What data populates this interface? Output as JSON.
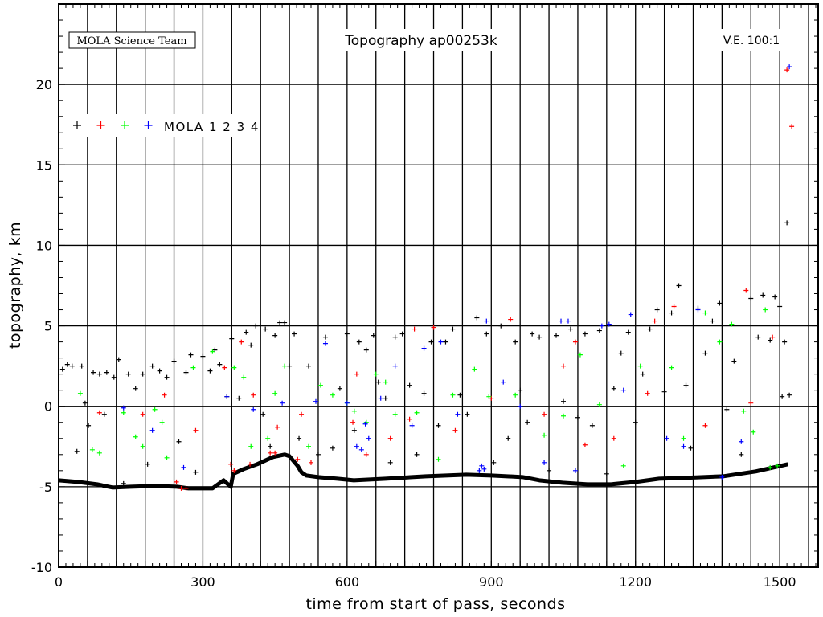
{
  "header": {
    "credit": "MOLA Science Team",
    "title": "Topography ap00253k",
    "ve": "V.E. 100:1"
  },
  "legend": {
    "label": "MOLA 1 2 3 4"
  },
  "chart_data": {
    "type": "scatter",
    "title": "Topography ap00253k",
    "xlabel": "time from start of pass, seconds",
    "ylabel": "topography, km",
    "xlim": [
      0,
      1580
    ],
    "ylim": [
      -10,
      25
    ],
    "xticks": [
      0,
      300,
      600,
      900,
      1200,
      1500
    ],
    "yticks": [
      -10,
      -5,
      0,
      5,
      10,
      15,
      20
    ],
    "x_grid_step": 60,
    "grid": true,
    "legend_position": "top-left",
    "series": [
      {
        "name": "1",
        "color": "#000000",
        "values": [
          [
            8,
            2.3
          ],
          [
            18,
            2.6
          ],
          [
            28,
            2.5
          ],
          [
            38,
            -2.8
          ],
          [
            48,
            2.5
          ],
          [
            55,
            0.2
          ],
          [
            62,
            -1.2
          ],
          [
            72,
            2.1
          ],
          [
            85,
            2.0
          ],
          [
            95,
            -0.5
          ],
          [
            100,
            2.1
          ],
          [
            115,
            1.8
          ],
          [
            125,
            2.9
          ],
          [
            135,
            -4.8
          ],
          [
            145,
            2.0
          ],
          [
            160,
            1.1
          ],
          [
            175,
            2.0
          ],
          [
            185,
            -3.6
          ],
          [
            195,
            2.5
          ],
          [
            210,
            2.2
          ],
          [
            225,
            1.8
          ],
          [
            240,
            2.8
          ],
          [
            250,
            -2.2
          ],
          [
            265,
            2.1
          ],
          [
            275,
            3.2
          ],
          [
            285,
            -4.1
          ],
          [
            300,
            3.1
          ],
          [
            315,
            2.2
          ],
          [
            325,
            3.5
          ],
          [
            335,
            2.6
          ],
          [
            350,
            0.6
          ],
          [
            360,
            4.2
          ],
          [
            375,
            0.5
          ],
          [
            390,
            4.6
          ],
          [
            400,
            3.8
          ],
          [
            410,
            5.0
          ],
          [
            425,
            -0.5
          ],
          [
            430,
            4.8
          ],
          [
            440,
            -2.5
          ],
          [
            450,
            4.4
          ],
          [
            460,
            5.2
          ],
          [
            470,
            5.2
          ],
          [
            480,
            2.5
          ],
          [
            490,
            4.5
          ],
          [
            500,
            -2.0
          ],
          [
            520,
            2.5
          ],
          [
            540,
            -3.0
          ],
          [
            555,
            4.3
          ],
          [
            570,
            -2.6
          ],
          [
            585,
            1.1
          ],
          [
            600,
            4.5
          ],
          [
            615,
            -1.5
          ],
          [
            625,
            4.0
          ],
          [
            640,
            3.5
          ],
          [
            655,
            4.4
          ],
          [
            665,
            1.5
          ],
          [
            680,
            0.5
          ],
          [
            690,
            -3.5
          ],
          [
            700,
            4.3
          ],
          [
            715,
            4.5
          ],
          [
            730,
            1.3
          ],
          [
            745,
            -3.0
          ],
          [
            760,
            0.8
          ],
          [
            775,
            4.0
          ],
          [
            790,
            -1.2
          ],
          [
            805,
            4.0
          ],
          [
            820,
            4.8
          ],
          [
            835,
            0.7
          ],
          [
            850,
            -0.5
          ],
          [
            870,
            5.5
          ],
          [
            890,
            4.5
          ],
          [
            905,
            -3.5
          ],
          [
            920,
            5.0
          ],
          [
            935,
            -2.0
          ],
          [
            950,
            4.0
          ],
          [
            960,
            1.0
          ],
          [
            975,
            -1.0
          ],
          [
            985,
            4.5
          ],
          [
            1000,
            4.3
          ],
          [
            1020,
            -4.0
          ],
          [
            1035,
            4.4
          ],
          [
            1050,
            0.3
          ],
          [
            1065,
            4.8
          ],
          [
            1080,
            -0.7
          ],
          [
            1095,
            4.5
          ],
          [
            1110,
            -1.2
          ],
          [
            1125,
            4.7
          ],
          [
            1140,
            -4.2
          ],
          [
            1155,
            1.1
          ],
          [
            1170,
            3.3
          ],
          [
            1185,
            4.6
          ],
          [
            1200,
            -1.0
          ],
          [
            1215,
            2.0
          ],
          [
            1230,
            4.8
          ],
          [
            1245,
            6.0
          ],
          [
            1260,
            0.9
          ],
          [
            1275,
            5.8
          ],
          [
            1290,
            7.5
          ],
          [
            1305,
            1.3
          ],
          [
            1315,
            -2.6
          ],
          [
            1330,
            6.1
          ],
          [
            1345,
            3.3
          ],
          [
            1360,
            5.3
          ],
          [
            1375,
            6.4
          ],
          [
            1390,
            -0.2
          ],
          [
            1405,
            2.8
          ],
          [
            1420,
            -3.0
          ],
          [
            1440,
            6.7
          ],
          [
            1455,
            4.3
          ],
          [
            1465,
            6.9
          ],
          [
            1480,
            4.1
          ],
          [
            1490,
            6.8
          ],
          [
            1500,
            6.2
          ],
          [
            1505,
            0.6
          ],
          [
            1510,
            4.0
          ],
          [
            1515,
            11.4
          ],
          [
            1520,
            0.7
          ]
        ]
      },
      {
        "name": "2",
        "color": "#ff0000",
        "values": [
          [
            85,
            -0.4
          ],
          [
            175,
            -0.5
          ],
          [
            220,
            0.7
          ],
          [
            285,
            -1.5
          ],
          [
            345,
            2.4
          ],
          [
            380,
            4.0
          ],
          [
            405,
            0.7
          ],
          [
            455,
            -1.3
          ],
          [
            505,
            -0.5
          ],
          [
            612,
            -1.0
          ],
          [
            620,
            2.0
          ],
          [
            640,
            -3.0
          ],
          [
            690,
            -2.0
          ],
          [
            730,
            -0.8
          ],
          [
            740,
            4.8
          ],
          [
            780,
            4.9
          ],
          [
            825,
            -1.5
          ],
          [
            900,
            0.5
          ],
          [
            940,
            5.4
          ],
          [
            1010,
            -0.5
          ],
          [
            1050,
            2.5
          ],
          [
            1075,
            4.0
          ],
          [
            1095,
            -2.4
          ],
          [
            1155,
            -2.0
          ],
          [
            1225,
            0.8
          ],
          [
            1240,
            5.3
          ],
          [
            1280,
            6.2
          ],
          [
            1345,
            -1.2
          ],
          [
            1430,
            7.2
          ],
          [
            1440,
            0.2
          ],
          [
            1485,
            4.3
          ],
          [
            1515,
            20.9
          ],
          [
            1525,
            17.4
          ],
          [
            245,
            -4.7
          ],
          [
            255,
            -5.1
          ],
          [
            265,
            -5.1
          ],
          [
            358,
            -3.6
          ],
          [
            365,
            -4.0
          ],
          [
            398,
            -3.6
          ],
          [
            440,
            -2.9
          ],
          [
            450,
            -2.9
          ],
          [
            497,
            -3.3
          ],
          [
            525,
            -3.5
          ]
        ]
      },
      {
        "name": "3",
        "color": "#00ff00",
        "values": [
          [
            45,
            0.8
          ],
          [
            70,
            -2.7
          ],
          [
            85,
            -2.9
          ],
          [
            135,
            -0.4
          ],
          [
            160,
            -1.9
          ],
          [
            175,
            -2.5
          ],
          [
            200,
            -0.2
          ],
          [
            215,
            -1.0
          ],
          [
            225,
            -3.2
          ],
          [
            280,
            2.4
          ],
          [
            320,
            3.4
          ],
          [
            365,
            2.4
          ],
          [
            385,
            1.8
          ],
          [
            400,
            -2.5
          ],
          [
            435,
            -2.0
          ],
          [
            450,
            0.8
          ],
          [
            470,
            2.5
          ],
          [
            520,
            -2.5
          ],
          [
            545,
            1.3
          ],
          [
            570,
            0.7
          ],
          [
            600,
            0.2
          ],
          [
            615,
            -0.3
          ],
          [
            640,
            -1.0
          ],
          [
            660,
            2.0
          ],
          [
            680,
            1.5
          ],
          [
            700,
            -0.5
          ],
          [
            745,
            -0.4
          ],
          [
            790,
            -3.3
          ],
          [
            820,
            0.7
          ],
          [
            865,
            2.3
          ],
          [
            895,
            0.6
          ],
          [
            950,
            0.7
          ],
          [
            1010,
            -1.8
          ],
          [
            1050,
            -0.6
          ],
          [
            1085,
            3.2
          ],
          [
            1125,
            0.1
          ],
          [
            1175,
            -3.7
          ],
          [
            1210,
            2.5
          ],
          [
            1275,
            2.4
          ],
          [
            1300,
            -2.0
          ],
          [
            1345,
            5.8
          ],
          [
            1375,
            4.0
          ],
          [
            1400,
            5.1
          ],
          [
            1425,
            -0.3
          ],
          [
            1445,
            -1.6
          ],
          [
            1470,
            6.0
          ],
          [
            1480,
            -3.8
          ],
          [
            1495,
            -3.7
          ]
        ]
      },
      {
        "name": "4",
        "color": "#0000ff",
        "values": [
          [
            135,
            -0.1
          ],
          [
            195,
            -1.5
          ],
          [
            260,
            -3.8
          ],
          [
            350,
            0.6
          ],
          [
            405,
            -0.2
          ],
          [
            465,
            0.2
          ],
          [
            535,
            0.3
          ],
          [
            555,
            3.9
          ],
          [
            600,
            0.2
          ],
          [
            620,
            -2.5
          ],
          [
            630,
            -2.7
          ],
          [
            638,
            -1.1
          ],
          [
            645,
            -2.0
          ],
          [
            670,
            0.5
          ],
          [
            700,
            2.5
          ],
          [
            735,
            -1.2
          ],
          [
            760,
            3.6
          ],
          [
            795,
            4.0
          ],
          [
            830,
            -0.5
          ],
          [
            875,
            -4.0
          ],
          [
            880,
            -3.7
          ],
          [
            885,
            -3.9
          ],
          [
            890,
            5.3
          ],
          [
            925,
            1.5
          ],
          [
            960,
            0.0
          ],
          [
            1010,
            -3.5
          ],
          [
            1045,
            5.3
          ],
          [
            1060,
            5.3
          ],
          [
            1075,
            -4.0
          ],
          [
            1130,
            5.0
          ],
          [
            1145,
            5.1
          ],
          [
            1175,
            1.0
          ],
          [
            1190,
            5.7
          ],
          [
            1265,
            -2.0
          ],
          [
            1300,
            -2.5
          ],
          [
            1330,
            6.0
          ],
          [
            1380,
            -4.4
          ],
          [
            1420,
            -2.2
          ],
          [
            1520,
            21.1
          ]
        ]
      }
    ],
    "ground_track": {
      "color": "#000000",
      "values": [
        [
          0,
          -4.6
        ],
        [
          40,
          -4.7
        ],
        [
          80,
          -4.85
        ],
        [
          112,
          -5.05
        ],
        [
          150,
          -5.0
        ],
        [
          200,
          -4.95
        ],
        [
          246,
          -5.0
        ],
        [
          270,
          -5.1
        ],
        [
          320,
          -5.1
        ],
        [
          343,
          -4.6
        ],
        [
          358,
          -5.0
        ],
        [
          363,
          -4.2
        ],
        [
          385,
          -3.9
        ],
        [
          413,
          -3.6
        ],
        [
          446,
          -3.15
        ],
        [
          470,
          -3.0
        ],
        [
          480,
          -3.1
        ],
        [
          497,
          -3.7
        ],
        [
          505,
          -4.1
        ],
        [
          515,
          -4.3
        ],
        [
          540,
          -4.4
        ],
        [
          580,
          -4.5
        ],
        [
          614,
          -4.6
        ],
        [
          680,
          -4.5
        ],
        [
          764,
          -4.35
        ],
        [
          848,
          -4.25
        ],
        [
          900,
          -4.3
        ],
        [
          965,
          -4.4
        ],
        [
          1000,
          -4.6
        ],
        [
          1048,
          -4.75
        ],
        [
          1100,
          -4.85
        ],
        [
          1149,
          -4.85
        ],
        [
          1200,
          -4.7
        ],
        [
          1249,
          -4.5
        ],
        [
          1300,
          -4.45
        ],
        [
          1383,
          -4.35
        ],
        [
          1450,
          -4.05
        ],
        [
          1517,
          -3.6
        ]
      ]
    }
  }
}
